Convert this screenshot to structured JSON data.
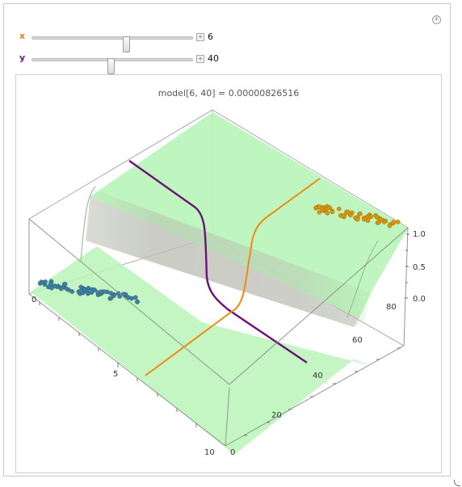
{
  "manipulate": {
    "corner_button_icon": "plus-circle-icon",
    "controls": [
      {
        "label": "x",
        "value": "6",
        "color": "#e8821e",
        "position_fraction": 0.6
      },
      {
        "label": "y",
        "value": "40",
        "color": "#6a1a7a",
        "position_fraction": 0.5
      }
    ]
  },
  "plot": {
    "title": "model[6, 40] = 0.00000826516",
    "x_axis": {
      "range": [
        0,
        10
      ],
      "ticks": [
        "0",
        "5",
        "10"
      ]
    },
    "y_axis": {
      "range": [
        0,
        80
      ],
      "ticks": [
        "0",
        "20",
        "40",
        "60",
        "80"
      ]
    },
    "z_axis": {
      "range": [
        0.0,
        1.0
      ],
      "ticks": [
        "0.0",
        "0.5",
        "1.0"
      ]
    },
    "surface_color": "#b8f5b8",
    "x_line_color": "#f08a10",
    "y_line_color": "#6a1478",
    "class0_color": "#3f6f8f",
    "class1_color": "#d4920f"
  }
}
